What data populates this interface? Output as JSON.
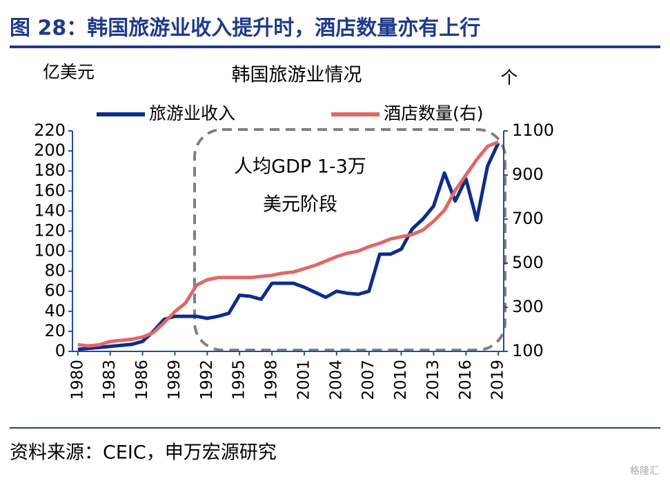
{
  "header": {
    "title": "图 28：韩国旅游业收入提升时，酒店数量亦有上行"
  },
  "chart_data": {
    "type": "line",
    "title": "韩国旅游业情况",
    "y_label": "亿美元",
    "y2_label": "个",
    "annotation": [
      "人均GDP 1-3万",
      "美元阶段"
    ],
    "x": [
      1980,
      1981,
      1982,
      1983,
      1984,
      1985,
      1986,
      1987,
      1988,
      1989,
      1990,
      1991,
      1992,
      1993,
      1994,
      1995,
      1996,
      1997,
      1998,
      1999,
      2000,
      2001,
      2002,
      2003,
      2004,
      2005,
      2006,
      2007,
      2008,
      2009,
      2010,
      2011,
      2012,
      2013,
      2014,
      2015,
      2016,
      2017,
      2018,
      2019
    ],
    "xlim": [
      1979.5,
      2019.5
    ],
    "xticks": [
      1980,
      1983,
      1986,
      1989,
      1992,
      1995,
      1998,
      2001,
      2004,
      2007,
      2010,
      2013,
      2016,
      2019
    ],
    "ylim": [
      0,
      220
    ],
    "yticks": [
      0,
      20,
      40,
      60,
      80,
      100,
      120,
      140,
      160,
      180,
      200,
      220
    ],
    "y2lim": [
      100,
      1100
    ],
    "y2ticks": [
      100,
      300,
      500,
      700,
      900,
      1100
    ],
    "legend": "top",
    "series": [
      {
        "name": "旅游业收入",
        "color": "#0d2d8c",
        "values": [
          2,
          3,
          4,
          5,
          6,
          7,
          10,
          20,
          32,
          35,
          35,
          35,
          33,
          35,
          38,
          56,
          55,
          52,
          68,
          68,
          68,
          64,
          59,
          54,
          60,
          58,
          57,
          60,
          97,
          97,
          102,
          122,
          132,
          145,
          178,
          150,
          172,
          131,
          185,
          208
        ]
      },
      {
        "name": "酒店数量(右)",
        "color": "#e06868",
        "axis": "y2",
        "values": [
          130,
          125,
          130,
          145,
          150,
          155,
          165,
          185,
          230,
          280,
          320,
          400,
          425,
          435,
          435,
          435,
          435,
          440,
          445,
          455,
          460,
          475,
          490,
          510,
          530,
          545,
          555,
          575,
          590,
          610,
          620,
          630,
          650,
          690,
          740,
          830,
          900,
          970,
          1030,
          1050
        ]
      }
    ]
  },
  "footer": {
    "source": "资料来源：CEIC，申万宏源研究",
    "watermark": "格隆汇"
  }
}
